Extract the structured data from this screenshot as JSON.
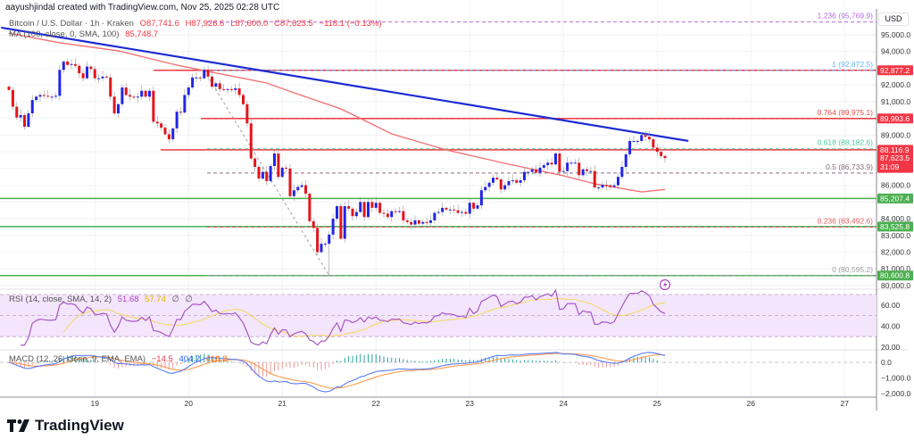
{
  "header": {
    "attribution": "aayushjindal created with TradingView.com, Nov 25, 2025 02:28 UTC",
    "symbol": "Bitcoin / U.S. Dollar · 1h · Kraken",
    "open": "O87,741.6",
    "high": "H87,926.6",
    "low": "L87,600.0",
    "close": "C87,623.5",
    "change": "−118.1 (−0.13%)"
  },
  "ma_legend": {
    "label": "MA (100, close, 0, SMA, 100)",
    "value": "85,748.7"
  },
  "rsi_legend": {
    "label": "RSI (14, close, SMA, 14, 2)",
    "rsi": "51.68",
    "sma": "57.74",
    "upper": "∅",
    "lower": "∅"
  },
  "macd_legend": {
    "label": "MACD (12, 26, close, 9, EMA, EMA)",
    "histogram": "−14.5",
    "macd": "404.2",
    "signal": "418.8"
  },
  "axis": {
    "currency": "USD",
    "price_ticks": [
      "95,000.0",
      "94,000.0",
      "92,000.0",
      "91,000.0",
      "89,000.0",
      "86,000.0",
      "84,000.0",
      "83,000.0",
      "82,000.0",
      "81,000.0",
      "80,000.0"
    ],
    "price_tick_values": [
      95000,
      94000,
      92000,
      91000,
      89000,
      86000,
      84000,
      83000,
      82000,
      81000,
      80000
    ],
    "rsi_ticks": [
      "60.00",
      "40.00",
      "20.00"
    ],
    "rsi_tick_values": [
      60,
      40,
      20
    ],
    "macd_ticks": [
      "0.0",
      "−1,000.0",
      "−2,000.0"
    ],
    "macd_tick_values": [
      0,
      -1000,
      -2000
    ],
    "time_ticks": [
      "19",
      "20",
      "21",
      "22",
      "23",
      "24",
      "25",
      "26",
      "27"
    ]
  },
  "price_tags": [
    {
      "text": "92,877.2",
      "value": 92877.2,
      "color": "#f23645"
    },
    {
      "text": "89,993.6",
      "value": 89993.6,
      "color": "#f23645"
    },
    {
      "text": "88,116.9",
      "value": 88116.9,
      "color": "#f23645"
    },
    {
      "text": "87,623.5",
      "sub": "31:09",
      "value": 87623.5,
      "color": "#f23645"
    },
    {
      "text": "85,207.4",
      "value": 85207.4,
      "color": "#4caf50"
    },
    {
      "text": "83,525.8",
      "value": 83525.8,
      "color": "#4caf50"
    },
    {
      "text": "80,600.8",
      "value": 80600.8,
      "color": "#4caf50"
    }
  ],
  "horizontal_lines": [
    {
      "value": 92877.2,
      "color": "#f23645",
      "kind": "resistance"
    },
    {
      "value": 89993.6,
      "color": "#f23645",
      "kind": "resistance"
    },
    {
      "value": 88116.9,
      "color": "#f23645",
      "kind": "resistance"
    },
    {
      "value": 85207.4,
      "color": "#4caf50",
      "kind": "support"
    },
    {
      "value": 83525.8,
      "color": "#4caf50",
      "kind": "support"
    },
    {
      "value": 80600.8,
      "color": "#4caf50",
      "kind": "support"
    }
  ],
  "fib_levels": [
    {
      "label": "1.236 (95,769.9)",
      "value": 95769.9,
      "color": "#b36cd9"
    },
    {
      "label": "1 (92,872.5)",
      "value": 92872.5,
      "color": "#64b5f6"
    },
    {
      "label": "0.764 (89,975.1)",
      "value": 89975.1,
      "color": "#e84a4a"
    },
    {
      "label": "0.618 (88,182.6)",
      "value": 88182.6,
      "color": "#4ccb9a"
    },
    {
      "label": "0.5 (86,733.9)",
      "value": 86733.9,
      "color": "#8a6d7d"
    },
    {
      "label": "0.236 (83,492.6)",
      "value": 83492.6,
      "color": "#e06060"
    },
    {
      "label": "0 (80,595.2)",
      "value": 80595.2,
      "color": "#9e9e9e"
    }
  ],
  "colors": {
    "up": "#2126e6",
    "down": "#e3151b",
    "ma": "#f47174",
    "trendline": "#1c2bd4",
    "rsi": "#a24bc4",
    "rsi_sma": "#f5d95a",
    "macd": "#5b7cf7",
    "signal": "#ff9a4d",
    "hist_up": "#26a69a",
    "hist_down": "#ef9a9a"
  },
  "chart_data": {
    "type": "candlestick",
    "symbol": "Bitcoin / U.S. Dollar",
    "interval": "1h",
    "first_candle": "2025-11-18 02:00",
    "last_candle": "2025-11-25 02:00",
    "ylim": [
      80000,
      95000
    ],
    "grid": true,
    "closes": [
      91700,
      90700,
      90050,
      90200,
      89500,
      90300,
      91100,
      91300,
      91400,
      91350,
      91300,
      91300,
      91350,
      92900,
      93400,
      93200,
      93250,
      93150,
      92700,
      92400,
      93100,
      92950,
      92400,
      92400,
      92500,
      92450,
      91300,
      90300,
      90850,
      91850,
      91400,
      91300,
      91250,
      91300,
      91650,
      91300,
      91650,
      89800,
      89700,
      89450,
      89050,
      88750,
      89400,
      90400,
      90350,
      91400,
      91850,
      92450,
      92450,
      92400,
      92900,
      92500,
      91900,
      92100,
      91750,
      91700,
      91750,
      91700,
      91800,
      91400,
      90850,
      89700,
      87600,
      87100,
      86400,
      86800,
      86250,
      87150,
      87900,
      86500,
      87050,
      87000,
      85350,
      85700,
      85900,
      86000,
      85500,
      83850,
      83450,
      82000,
      82500,
      82500,
      83050,
      84000,
      84750,
      82800,
      84750,
      84600,
      84150,
      84400,
      85000,
      84100,
      85000,
      84650,
      84950,
      84350,
      84300,
      84100,
      84450,
      84400,
      84450,
      83900,
      83800,
      83650,
      83900,
      83700,
      83800,
      83750,
      83900,
      84350,
      84400,
      84650,
      84550,
      84550,
      84500,
      84350,
      84400,
      84300,
      84950,
      84600,
      84800,
      85700,
      85900,
      86150,
      86450,
      86350,
      85750,
      86000,
      86250,
      86300,
      86150,
      86300,
      86800,
      86800,
      86950,
      86750,
      87050,
      87200,
      87350,
      87250,
      87900,
      86800,
      86850,
      87350,
      87350,
      87350,
      86600,
      86950,
      86850,
      86850,
      85870,
      85870,
      86030,
      86000,
      85900,
      86000,
      86500,
      87100,
      87850,
      88650,
      88650,
      88650,
      89000,
      88900,
      88750,
      88250,
      88000,
      87750,
      87623.5
    ],
    "swing_high": {
      "time": "2025-11-20 04:00",
      "price": 92872.5
    },
    "swing_low": {
      "time": "2025-11-21 12:00",
      "price": 80595.2
    },
    "ma100_points": [
      [
        "2025-11-18 02:00",
        95100
      ],
      [
        "2025-11-18 15:00",
        94520
      ],
      [
        "2025-11-19 06:00",
        94040
      ],
      [
        "2025-11-19 21:00",
        93185
      ],
      [
        "2025-11-20 05:00",
        92810
      ],
      [
        "2025-11-20 20:00",
        92117
      ],
      [
        "2025-11-21 03:00",
        91530
      ],
      [
        "2025-11-21 15:00",
        90570
      ],
      [
        "2025-11-21 22:00",
        89770
      ],
      [
        "2025-11-22 04:00",
        89074
      ],
      [
        "2025-11-22 18:00",
        88113
      ],
      [
        "2025-11-23 09:00",
        87312
      ],
      [
        "2025-11-24 00:00",
        86565
      ],
      [
        "2025-11-24 08:00",
        86084
      ],
      [
        "2025-11-24 16:00",
        85764
      ],
      [
        "2025-11-24 20:00",
        85600
      ],
      [
        "2025-11-25 02:00",
        85748.7
      ]
    ],
    "trendline": [
      [
        "2025-11-18 00:00",
        95430
      ],
      [
        "2025-11-25 08:00",
        88650
      ]
    ],
    "rsi_levels": {
      "upper": 70,
      "middle": 50,
      "lower": 30
    }
  },
  "logo": {
    "text": "TradingView"
  }
}
